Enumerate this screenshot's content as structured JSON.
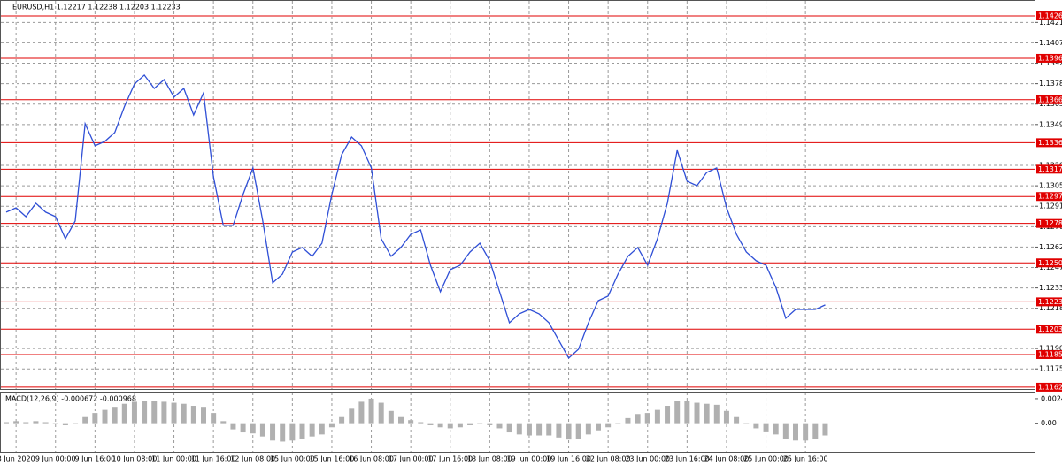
{
  "chart_data": {
    "type": "line",
    "title": "EURUSD,H1  1.12217 1.12238 1.12203 1.12233",
    "categories": [
      null,
      "8 Jun 2020",
      null,
      null,
      null,
      "9 Jun 00:00",
      null,
      null,
      null,
      "9 Jun 16:00",
      null,
      null,
      null,
      "10 Jun 08:00",
      null,
      null,
      null,
      "11 Jun 00:00",
      null,
      null,
      null,
      "11 Jun 16:00",
      null,
      null,
      null,
      "12 Jun 08:00",
      null,
      null,
      null,
      "15 Jun 00:00",
      null,
      null,
      null,
      "15 Jun 16:00",
      null,
      null,
      null,
      "16 Jun 08:00",
      null,
      null,
      null,
      "17 Jun 00:00",
      null,
      null,
      null,
      "17 Jun 16:00",
      null,
      null,
      null,
      "18 Jun 08:00",
      null,
      null,
      null,
      "19 Jun 00:00",
      null,
      null,
      null,
      "19 Jun 16:00",
      null,
      null,
      null,
      "22 Jun 08:00",
      null,
      null,
      null,
      "23 Jun 00:00",
      null,
      null,
      null,
      "23 Jun 16:00",
      null,
      null,
      null,
      "24 Jun 08:00",
      null,
      null,
      null,
      "25 Jun 00:00",
      null,
      null,
      null,
      "25 Jun 16:00",
      null,
      null
    ],
    "series": [
      {
        "name": "EURUSD",
        "color": "#2f4fd6",
        "values": [
          1.12868,
          1.12899,
          1.12836,
          1.12931,
          1.12868,
          1.12836,
          1.1268,
          1.12805,
          1.13495,
          1.13339,
          1.1337,
          1.13433,
          1.13621,
          1.13778,
          1.13841,
          1.13746,
          1.13809,
          1.13684,
          1.13746,
          1.13558,
          1.13715,
          1.13119,
          1.12774,
          1.12774,
          1.12993,
          1.13182,
          1.12805,
          1.12366,
          1.12428,
          1.12585,
          1.12617,
          1.12554,
          1.12648,
          1.12993,
          1.13276,
          1.13401,
          1.13339,
          1.13182,
          1.1268,
          1.12554,
          1.12617,
          1.12711,
          1.12742,
          1.12491,
          1.12303,
          1.1246,
          1.12491,
          1.12585,
          1.12648,
          1.12523,
          1.12303,
          1.12083,
          1.12146,
          1.12177,
          1.12146,
          1.12083,
          1.11958,
          1.11832,
          1.11895,
          1.12083,
          1.1224,
          1.12272,
          1.12428,
          1.12554,
          1.12617,
          1.12491,
          1.1268,
          1.12931,
          1.13307,
          1.13087,
          1.13056,
          1.1315,
          1.13182,
          1.12899,
          1.12711,
          1.12585,
          1.12523,
          1.12491,
          1.12334,
          1.12115,
          1.12177,
          1.12177,
          1.12177,
          1.12209
        ]
      }
    ],
    "ylim": [
      1.11612,
      1.14374
    ],
    "yticks": [
      {
        "value": 1.14215,
        "label": "1.14215"
      },
      {
        "value": 1.1407,
        "label": "1.14070"
      },
      {
        "value": 1.13925,
        "label": "1.13925"
      },
      {
        "value": 1.1378,
        "label": "1.13780"
      },
      {
        "value": 1.13635,
        "label": "1.13635"
      },
      {
        "value": 1.1349,
        "label": "1.13490"
      },
      {
        "value": 1.132,
        "label": "1.13200"
      },
      {
        "value": 1.13055,
        "label": "1.13055"
      },
      {
        "value": 1.1291,
        "label": "1.12910"
      },
      {
        "value": 1.12765,
        "label": "1.12765"
      },
      {
        "value": 1.1262,
        "label": "1.12620"
      },
      {
        "value": 1.12475,
        "label": "1.12475"
      },
      {
        "value": 1.1233,
        "label": "1.12330"
      },
      {
        "value": 1.12185,
        "label": "1.12185"
      },
      {
        "value": 1.119,
        "label": "1.11900"
      },
      {
        "value": 1.11755,
        "label": "1.11755"
      }
    ],
    "levels": [
      {
        "value": 1.14261,
        "label": "1.14261"
      },
      {
        "value": 1.1396,
        "label": "1.13960"
      },
      {
        "value": 1.13666,
        "label": "1.13666"
      },
      {
        "value": 1.13361,
        "label": "1.13361"
      },
      {
        "value": 1.13173,
        "label": "1.13173"
      },
      {
        "value": 1.12979,
        "label": "1.12979"
      },
      {
        "value": 1.12788,
        "label": "1.12788"
      },
      {
        "value": 1.12508,
        "label": "1.12508"
      },
      {
        "value": 1.12231,
        "label": "1.12231"
      },
      {
        "value": 1.12037,
        "label": "1.12037"
      },
      {
        "value": 1.11857,
        "label": "1.11857"
      },
      {
        "value": 1.11625,
        "label": "1.11625"
      }
    ],
    "level_color": "#e00000",
    "grid": true,
    "macd": {
      "name": "MACD(12,26,9) -0.000672 -0.000968",
      "color": "#b0b0b0",
      "values": [
        0.0001,
        0.0002,
        0.0001,
        0.0002,
        0.0001,
        0,
        -0.0002,
        -0.0001,
        0.0006,
        0.001,
        0.0013,
        0.0016,
        0.0019,
        0.0021,
        0.0022,
        0.0022,
        0.0021,
        0.002,
        0.0019,
        0.0017,
        0.0016,
        0.001,
        0.0002,
        -0.0006,
        -0.0009,
        -0.001,
        -0.0013,
        -0.0017,
        -0.0018,
        -0.0017,
        -0.0015,
        -0.0013,
        -0.0011,
        -0.0004,
        0.0006,
        0.0015,
        0.0021,
        0.0024,
        0.002,
        0.0012,
        0.0006,
        0.0003,
        0.0001,
        -0.0002,
        -0.0004,
        -0.0005,
        -0.0004,
        -0.0002,
        -0.0001,
        -0.0002,
        -0.0005,
        -0.0009,
        -0.0011,
        -0.0012,
        -0.0012,
        -0.0012,
        -0.0014,
        -0.0016,
        -0.0015,
        -0.0011,
        -0.0007,
        -0.0004,
        0,
        0.0005,
        0.0009,
        0.001,
        0.0013,
        0.0017,
        0.0022,
        0.0022,
        0.002,
        0.0019,
        0.0018,
        0.0012,
        0.0006,
        0,
        -0.0005,
        -0.0008,
        -0.0011,
        -0.0015,
        -0.0017,
        -0.0017,
        -0.0015,
        -0.0012
      ],
      "ylim": [
        -0.0028,
        0.003
      ],
      "yticks": [
        0.0024,
        {
          "value": 0,
          "label": "0.00"
        }
      ]
    }
  }
}
